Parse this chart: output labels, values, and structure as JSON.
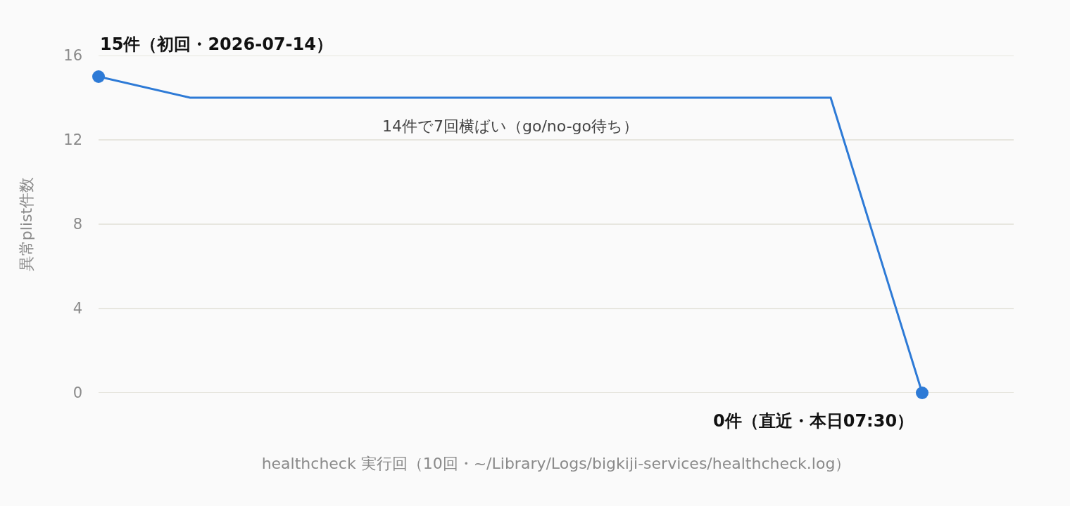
{
  "chart_data": {
    "type": "line",
    "categories": [
      null,
      null,
      null,
      null,
      null,
      null,
      null,
      null,
      null,
      null
    ],
    "series": [
      {
        "type": "line",
        "color": "#2d7ad6",
        "marker": "none",
        "values": [
          15,
          14,
          14,
          14,
          14,
          14,
          14,
          14,
          14,
          0
        ]
      },
      {
        "type": "scatter",
        "color": "#2d7ad6",
        "marker": "circle",
        "values": [
          15,
          null,
          null,
          null,
          null,
          null,
          null,
          null,
          null,
          0
        ]
      }
    ],
    "xlabel": "healthcheck 実行回（10回・~/Library/Logs/bigkiji-services/healthcheck.log）",
    "ylabel": "異常plist件数",
    "ylim": [
      0,
      16
    ],
    "yticks": [
      0,
      4,
      8,
      12,
      16
    ],
    "grid": "y",
    "tick_labels": "y",
    "annotations": [
      "15件（初回・2026-07-14）",
      {
        "text": "14件で7回横ばい（go/no-go待ち）",
        "y": 14
      },
      "0件（直近・本日07:30）"
    ]
  }
}
